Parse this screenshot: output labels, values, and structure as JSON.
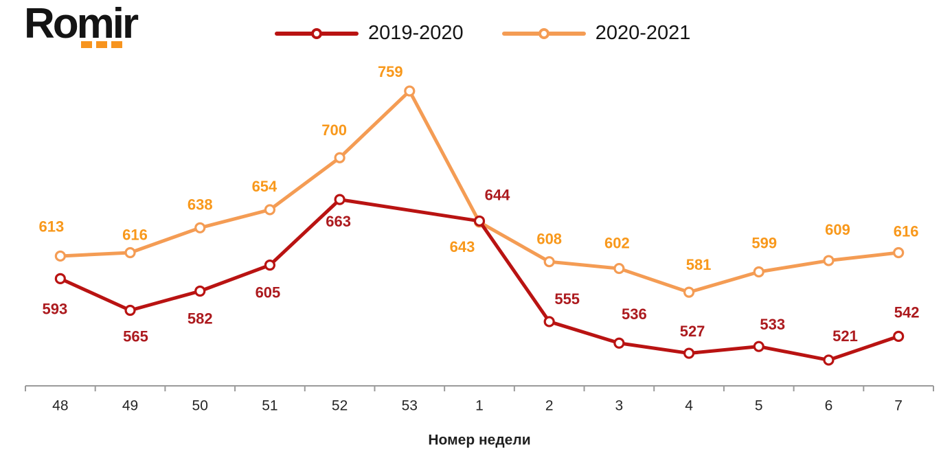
{
  "logo": {
    "text": "Romir",
    "accent_color": "#F7941E",
    "text_color": "#141414"
  },
  "chart_data": {
    "type": "line",
    "title": "",
    "xlabel": "Номер недели",
    "ylabel": "",
    "categories": [
      "48",
      "49",
      "50",
      "51",
      "52",
      "53",
      "1",
      "2",
      "3",
      "4",
      "5",
      "6",
      "7"
    ],
    "series": [
      {
        "name": "2019-2020",
        "color": "#B91312",
        "label_color": "#AC1A1E",
        "values": [
          593,
          565,
          582,
          605,
          663,
          null,
          644,
          555,
          536,
          527,
          533,
          521,
          542
        ],
        "label_offsets": [
          [
            -8,
            44
          ],
          [
            8,
            38
          ],
          [
            0,
            40
          ],
          [
            -3,
            40
          ],
          [
            -2,
            32
          ],
          null,
          [
            26,
            -38
          ],
          [
            26,
            -33
          ],
          [
            22,
            -42
          ],
          [
            5,
            -32
          ],
          [
            20,
            -32
          ],
          [
            24,
            -35
          ],
          [
            12,
            -35
          ]
        ]
      },
      {
        "name": "2020-2021",
        "color": "#F49C54",
        "label_color": "#F8981B",
        "values": [
          613,
          616,
          638,
          654,
          700,
          759,
          643,
          608,
          602,
          581,
          599,
          609,
          616
        ],
        "label_offsets": [
          [
            -13,
            -43
          ],
          [
            7,
            -26
          ],
          [
            0,
            -34
          ],
          [
            -8,
            -34
          ],
          [
            -8,
            -40
          ],
          [
            -28,
            -28
          ],
          [
            -25,
            36
          ],
          [
            0,
            -33
          ],
          [
            -3,
            -37
          ],
          [
            14,
            -40
          ],
          [
            8,
            -42
          ],
          [
            13,
            -45
          ],
          [
            11,
            -31
          ]
        ]
      }
    ],
    "ylim": [
      500,
      780
    ],
    "grid": false,
    "legend_position": "top-center",
    "axis_color": "#9A9A9A",
    "tick_label_color": "#262626",
    "axis_title_color": "#1F1F1F",
    "markers": "circle-white-fill",
    "data_labels": true
  }
}
